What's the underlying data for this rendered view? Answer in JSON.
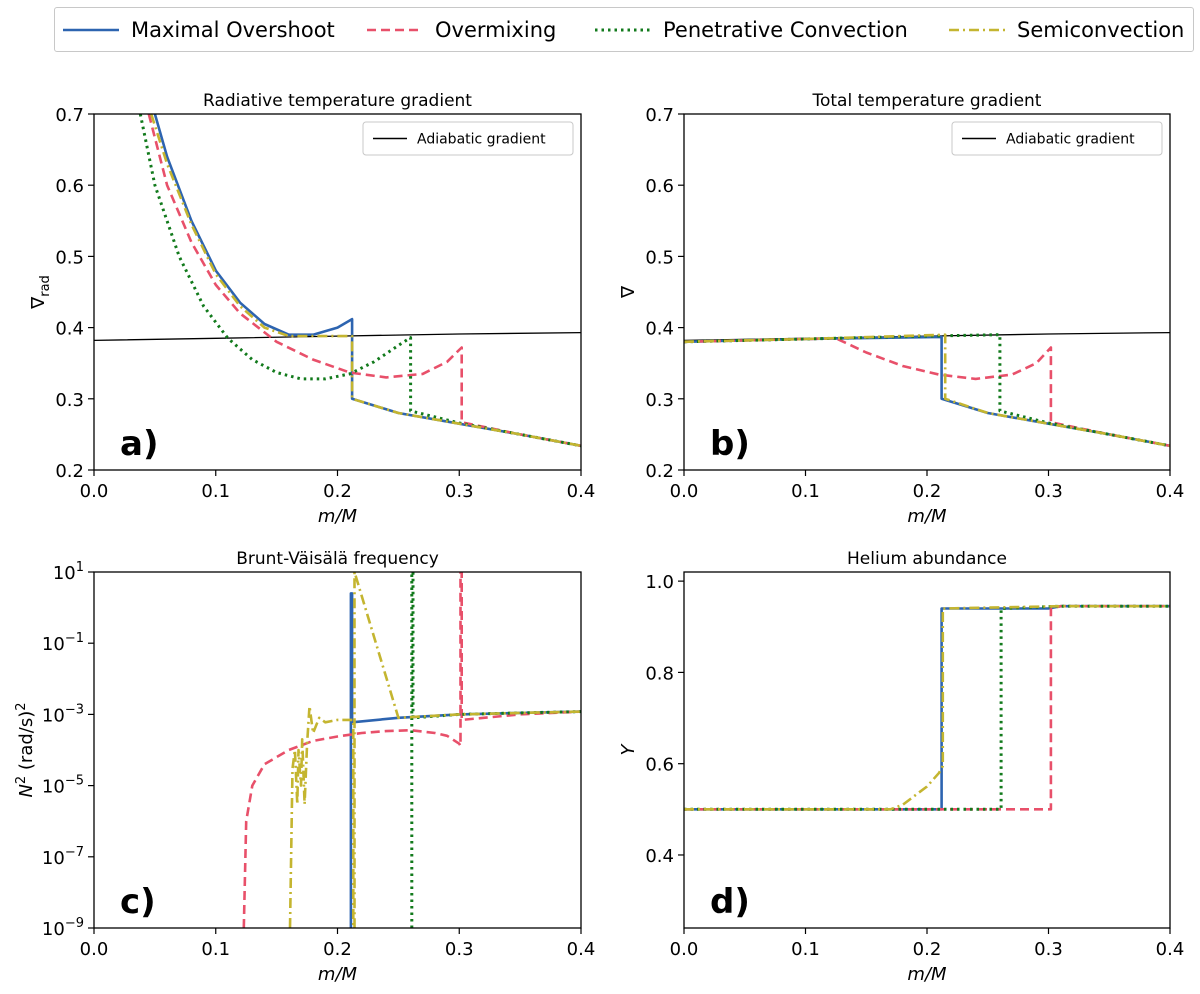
{
  "colors": {
    "maximal": "#2d64b0",
    "overmixing": "#e8506a",
    "penetrative": "#127a1c",
    "semiconvection": "#c4b530",
    "adiabatic": "#000000"
  },
  "legend": [
    {
      "name": "Maximal Overshoot",
      "style": "solid",
      "color": "#2d64b0"
    },
    {
      "name": "Overmixing",
      "style": "dashed",
      "color": "#e8506a"
    },
    {
      "name": "Penetrative Convection",
      "style": "dotted",
      "color": "#127a1c"
    },
    {
      "name": "Semiconvection",
      "style": "dashdot",
      "color": "#c4b530"
    }
  ],
  "chart_data": [
    {
      "type": "line",
      "panel_label": "a)",
      "title": "Radiative temperature gradient",
      "xlabel": "m/M",
      "ylabel": "∇rad",
      "xlim": [
        0,
        0.4
      ],
      "ylim": [
        0.2,
        0.7
      ],
      "xticks": [
        "0.0",
        "0.1",
        "0.2",
        "0.3",
        "0.4"
      ],
      "yticks": [
        "0.2",
        "0.3",
        "0.4",
        "0.5",
        "0.6",
        "0.7"
      ],
      "legend_entry": "Adiabatic gradient",
      "legend_position": "top-right",
      "series": [
        {
          "name": "Adiabatic gradient",
          "style": "solid",
          "color": "#000000",
          "x": [
            0,
            0.1,
            0.2,
            0.3,
            0.4
          ],
          "y": [
            0.382,
            0.385,
            0.388,
            0.391,
            0.393
          ]
        },
        {
          "name": "Maximal Overshoot",
          "style": "solid",
          "color": "#2d64b0",
          "x": [
            0.05,
            0.06,
            0.08,
            0.1,
            0.12,
            0.14,
            0.16,
            0.18,
            0.2,
            0.212,
            0.212,
            0.25,
            0.3,
            0.35,
            0.4
          ],
          "y": [
            0.7,
            0.64,
            0.55,
            0.48,
            0.435,
            0.405,
            0.39,
            0.39,
            0.4,
            0.412,
            0.3,
            0.28,
            0.265,
            0.25,
            0.234
          ]
        },
        {
          "name": "Overmixing",
          "style": "dashed",
          "color": "#e8506a",
          "x": [
            0.045,
            0.06,
            0.08,
            0.1,
            0.12,
            0.15,
            0.18,
            0.21,
            0.24,
            0.27,
            0.29,
            0.302,
            0.302,
            0.35,
            0.4
          ],
          "y": [
            0.7,
            0.6,
            0.52,
            0.46,
            0.42,
            0.38,
            0.355,
            0.337,
            0.33,
            0.335,
            0.352,
            0.372,
            0.267,
            0.25,
            0.234
          ]
        },
        {
          "name": "Penetrative Convection",
          "style": "dotted",
          "color": "#127a1c",
          "x": [
            0.038,
            0.05,
            0.07,
            0.09,
            0.11,
            0.13,
            0.15,
            0.17,
            0.19,
            0.21,
            0.23,
            0.25,
            0.26,
            0.26,
            0.3,
            0.35,
            0.4
          ],
          "y": [
            0.7,
            0.6,
            0.5,
            0.43,
            0.385,
            0.355,
            0.337,
            0.328,
            0.328,
            0.335,
            0.352,
            0.375,
            0.386,
            0.283,
            0.266,
            0.25,
            0.234
          ]
        },
        {
          "name": "Semiconvection",
          "style": "dashdot",
          "color": "#c4b530",
          "x": [
            0.047,
            0.06,
            0.08,
            0.1,
            0.12,
            0.14,
            0.16,
            0.212,
            0.212,
            0.25,
            0.3,
            0.35,
            0.4
          ],
          "y": [
            0.7,
            0.63,
            0.545,
            0.475,
            0.43,
            0.4,
            0.388,
            0.388,
            0.3,
            0.28,
            0.265,
            0.25,
            0.234
          ]
        }
      ]
    },
    {
      "type": "line",
      "panel_label": "b)",
      "title": "Total temperature gradient",
      "xlabel": "m/M",
      "ylabel": "∇",
      "xlim": [
        0,
        0.4
      ],
      "ylim": [
        0.2,
        0.7
      ],
      "xticks": [
        "0.0",
        "0.1",
        "0.2",
        "0.3",
        "0.4"
      ],
      "yticks": [
        "0.2",
        "0.3",
        "0.4",
        "0.5",
        "0.6",
        "0.7"
      ],
      "legend_entry": "Adiabatic gradient",
      "legend_position": "top-right",
      "series": [
        {
          "name": "Adiabatic gradient",
          "style": "solid",
          "color": "#000000",
          "x": [
            0,
            0.1,
            0.2,
            0.3,
            0.4
          ],
          "y": [
            0.382,
            0.385,
            0.388,
            0.391,
            0.393
          ]
        },
        {
          "name": "Maximal Overshoot",
          "style": "solid",
          "color": "#2d64b0",
          "x": [
            0,
            0.1,
            0.212,
            0.212,
            0.25,
            0.3,
            0.35,
            0.4
          ],
          "y": [
            0.38,
            0.384,
            0.387,
            0.3,
            0.28,
            0.265,
            0.25,
            0.234
          ]
        },
        {
          "name": "Overmixing",
          "style": "dashed",
          "color": "#e8506a",
          "x": [
            0,
            0.1,
            0.125,
            0.15,
            0.18,
            0.21,
            0.24,
            0.27,
            0.29,
            0.302,
            0.302,
            0.35,
            0.4
          ],
          "y": [
            0.38,
            0.384,
            0.385,
            0.365,
            0.346,
            0.334,
            0.328,
            0.334,
            0.35,
            0.372,
            0.267,
            0.25,
            0.234
          ]
        },
        {
          "name": "Penetrative Convection",
          "style": "dotted",
          "color": "#127a1c",
          "x": [
            0,
            0.1,
            0.2,
            0.26,
            0.26,
            0.3,
            0.35,
            0.4
          ],
          "y": [
            0.38,
            0.384,
            0.388,
            0.39,
            0.283,
            0.266,
            0.25,
            0.234
          ]
        },
        {
          "name": "Semiconvection",
          "style": "dashdot",
          "color": "#c4b530",
          "x": [
            0,
            0.1,
            0.215,
            0.215,
            0.25,
            0.3,
            0.35,
            0.4
          ],
          "y": [
            0.38,
            0.384,
            0.39,
            0.3,
            0.28,
            0.265,
            0.25,
            0.234
          ]
        }
      ]
    },
    {
      "type": "line",
      "panel_label": "c)",
      "title": "Brunt-Väisälä frequency",
      "xlabel": "m/M",
      "ylabel": "N² (rad/s)²",
      "yscale": "log",
      "xlim": [
        0,
        0.4
      ],
      "ylim": [
        1e-09,
        10
      ],
      "xticks": [
        "0.0",
        "0.1",
        "0.2",
        "0.3",
        "0.4"
      ],
      "yticks": [
        "10^1",
        "10^-1",
        "10^-3",
        "10^-5",
        "10^-7",
        "10^-9"
      ],
      "series": [
        {
          "name": "Maximal Overshoot",
          "style": "solid",
          "color": "#2d64b0",
          "x": [
            0.211,
            0.211,
            0.212,
            0.212,
            0.25,
            0.3,
            0.35,
            0.4
          ],
          "y": [
            1e-09,
            2.5,
            2.5,
            0.0006,
            0.0008,
            0.001,
            0.0011,
            0.0012
          ]
        },
        {
          "name": "Overmixing",
          "style": "dashed",
          "color": "#e8506a",
          "x": [
            0.123,
            0.125,
            0.13,
            0.14,
            0.16,
            0.18,
            0.2,
            0.22,
            0.24,
            0.26,
            0.28,
            0.29,
            0.3,
            0.301,
            0.301,
            0.302,
            0.302,
            0.35,
            0.4
          ],
          "y": [
            1e-09,
            1e-06,
            1e-05,
            4e-05,
            0.0001,
            0.00018,
            0.00024,
            0.0003,
            0.00034,
            0.00036,
            0.0003,
            0.00025,
            0.00015,
            0.00013,
            10,
            10,
            0.0007,
            0.001,
            0.0012
          ]
        },
        {
          "name": "Penetrative Convection",
          "style": "dotted",
          "color": "#127a1c",
          "x": [
            0.261,
            0.261,
            0.262,
            0.262,
            0.3,
            0.35,
            0.4
          ],
          "y": [
            1e-09,
            10,
            10,
            0.0008,
            0.001,
            0.0011,
            0.0012
          ]
        },
        {
          "name": "Semiconvection",
          "style": "dashdot",
          "color": "#c4b530",
          "x": [
            0.161,
            0.163,
            0.165,
            0.167,
            0.168,
            0.17,
            0.171,
            0.173,
            0.175,
            0.177,
            0.18,
            0.185,
            0.19,
            0.2,
            0.21,
            0.213,
            0.213,
            0.214,
            0.214,
            0.25,
            0.3,
            0.35,
            0.4
          ],
          "y": [
            1e-09,
            3e-05,
            0.0001,
            3e-06,
            0.0001,
            1e-05,
            0.0002,
            3e-06,
            0.00015,
            0.0017,
            0.0003,
            0.0008,
            0.0006,
            0.0007,
            0.0007,
            0.0007,
            1e-09,
            1e-09,
            10,
            0.0008,
            0.001,
            0.0011,
            0.0012
          ]
        }
      ]
    },
    {
      "type": "line",
      "panel_label": "d)",
      "title": "Helium abundance",
      "xlabel": "m/M",
      "ylabel": "Y",
      "xlim": [
        0,
        0.4
      ],
      "ylim": [
        0.24,
        1.02
      ],
      "xticks": [
        "0.0",
        "0.1",
        "0.2",
        "0.3",
        "0.4"
      ],
      "yticks": [
        "0.4",
        "0.6",
        "0.8",
        "1.0"
      ],
      "series": [
        {
          "name": "Maximal Overshoot",
          "style": "solid",
          "color": "#2d64b0",
          "x": [
            0,
            0.211,
            0.211,
            0.212,
            0.212,
            0.3,
            0.31,
            0.4
          ],
          "y": [
            0.5,
            0.5,
            0.5,
            0.5,
            0.94,
            0.94,
            0.945,
            0.945
          ]
        },
        {
          "name": "Overmixing",
          "style": "dashed",
          "color": "#e8506a",
          "x": [
            0,
            0.302,
            0.302,
            0.31,
            0.4
          ],
          "y": [
            0.5,
            0.5,
            0.94,
            0.945,
            0.945
          ]
        },
        {
          "name": "Penetrative Convection",
          "style": "dotted",
          "color": "#127a1c",
          "x": [
            0,
            0.261,
            0.261,
            0.31,
            0.4
          ],
          "y": [
            0.5,
            0.5,
            0.94,
            0.945,
            0.945
          ]
        },
        {
          "name": "Semiconvection",
          "style": "dashdot",
          "color": "#c4b530",
          "x": [
            0,
            0.17,
            0.18,
            0.19,
            0.2,
            0.21,
            0.213,
            0.213,
            0.31,
            0.4
          ],
          "y": [
            0.5,
            0.5,
            0.51,
            0.53,
            0.55,
            0.58,
            0.595,
            0.94,
            0.945,
            0.945
          ]
        }
      ]
    }
  ]
}
